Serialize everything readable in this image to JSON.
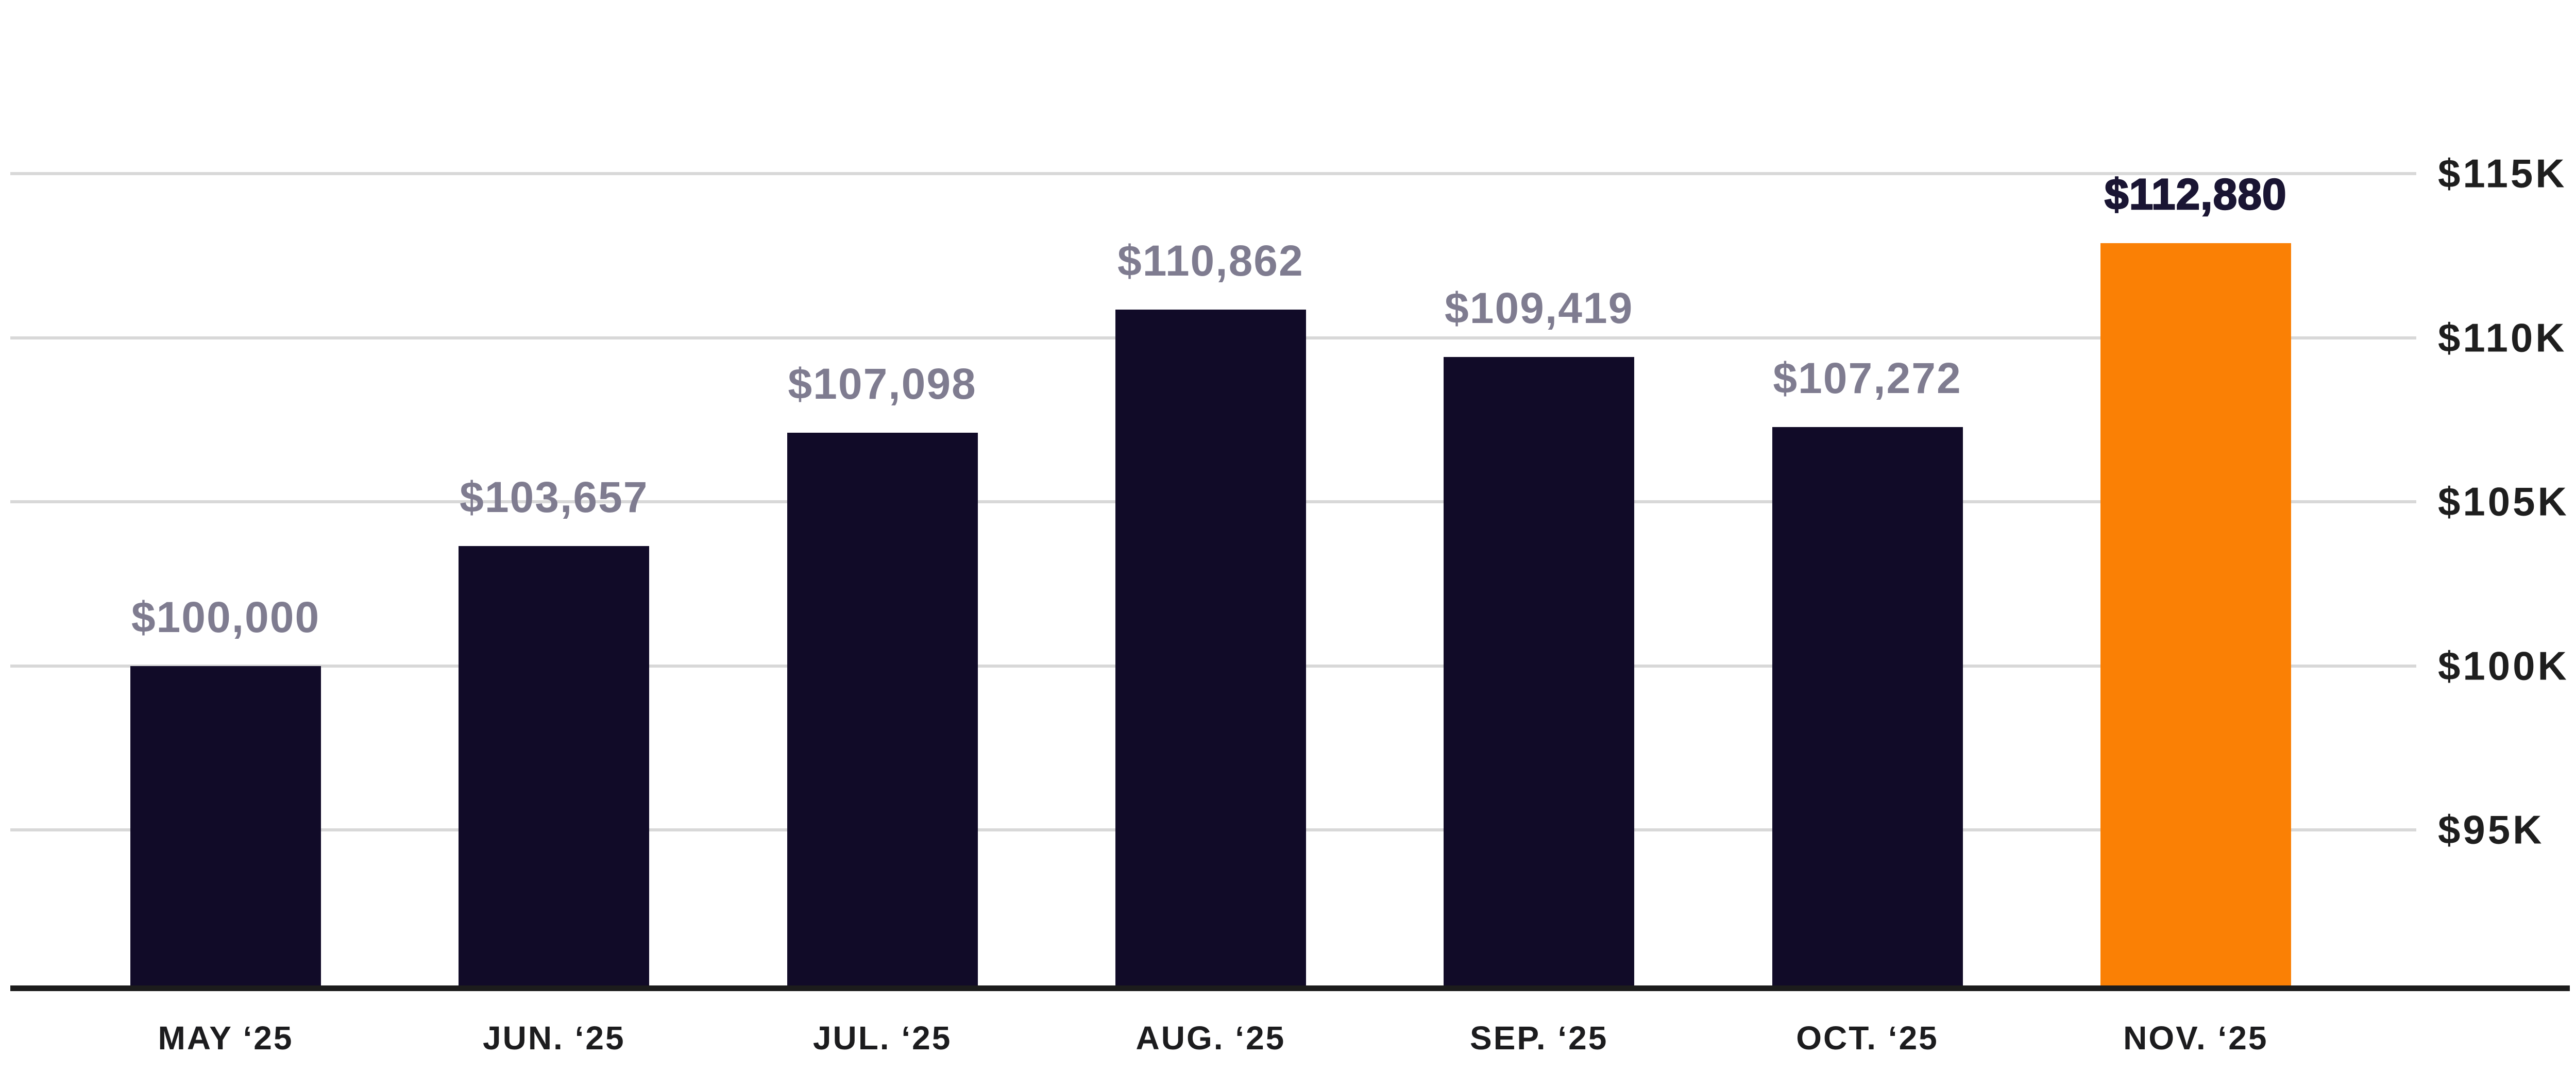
{
  "chart_data": {
    "type": "bar",
    "categories": [
      "MAY ‘25",
      "JUN. ‘25",
      "JUL. ‘25",
      "AUG. ‘25",
      "SEP. ‘25",
      "OCT. ‘25",
      "NOV. ‘25"
    ],
    "values": [
      100000,
      103657,
      107098,
      110862,
      109419,
      107272,
      112880
    ],
    "value_labels": [
      "$100,000",
      "$103,657",
      "$107,098",
      "$110,862",
      "$109,419",
      "$107,272",
      "$112,880"
    ],
    "highlight_index": 6,
    "title": "",
    "xlabel": "",
    "ylabel": "",
    "ylim": [
      90400,
      115000
    ],
    "grid": true,
    "legend": "none",
    "y_axis_side": "right",
    "y_ticks": [
      {
        "value": 115000,
        "label": "$115K"
      },
      {
        "value": 110000,
        "label": "$110K"
      },
      {
        "value": 105000,
        "label": "$105K"
      },
      {
        "value": 100000,
        "label": "$100K"
      },
      {
        "value": 95000,
        "label": "$95K"
      }
    ]
  },
  "colors": {
    "bar": "#110B28",
    "bar_highlight": "#FA8005",
    "value_label": "#7F7C90",
    "value_label_highlight": "#1A1533",
    "axis_label": "#1C1C1E",
    "y_axis_label": "#1E1E1E",
    "gridline": "#D8D8D8",
    "axis_line": "#1C1C1C",
    "background": "#FFFFFF"
  }
}
